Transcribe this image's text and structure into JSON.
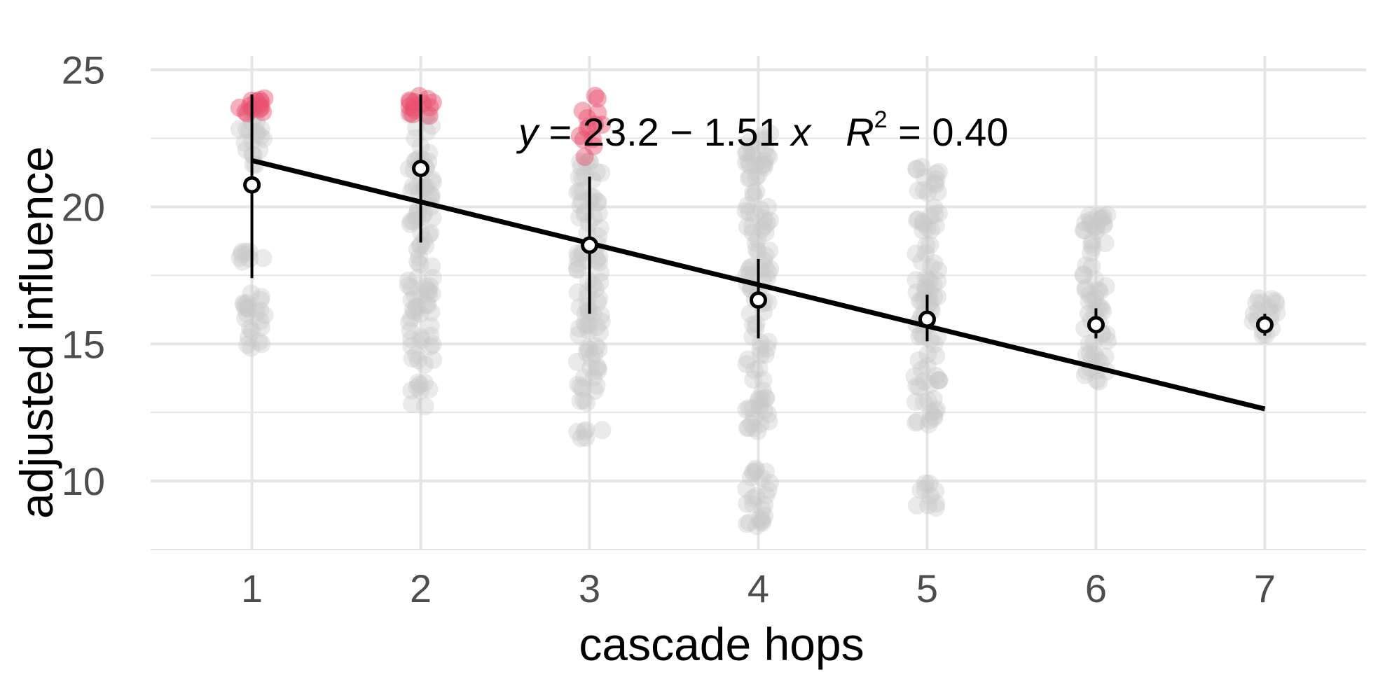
{
  "chart_data": {
    "type": "scatter",
    "title": "",
    "xlabel": "cascade hops",
    "ylabel": "adjusted influence",
    "xlim": [
      0.4,
      7.6
    ],
    "ylim": [
      7.5,
      25.5
    ],
    "x_ticks": [
      "1",
      "2",
      "3",
      "4",
      "5",
      "6",
      "7"
    ],
    "y_ticks": [
      "10",
      "15",
      "20",
      "25"
    ],
    "grid": true,
    "legend": "none",
    "annotation": {
      "y_symbol": "y",
      "equation_rest": " = 23.2 − 1.51 ",
      "x_symbol": "x",
      "r_symbol": "R",
      "r_exponent": "2",
      "r_rest": " = 0.40"
    },
    "fit_line": {
      "intercept": 23.2,
      "slope": -1.51,
      "x_range": [
        1,
        7
      ],
      "color": "#000000"
    },
    "means": [
      {
        "x": 1,
        "mean": 20.8,
        "low": 17.4,
        "high": 24.1
      },
      {
        "x": 2,
        "mean": 21.4,
        "low": 18.7,
        "high": 24.1
      },
      {
        "x": 3,
        "mean": 18.6,
        "low": 16.1,
        "high": 21.1
      },
      {
        "x": 4,
        "mean": 16.6,
        "low": 15.2,
        "high": 18.1
      },
      {
        "x": 5,
        "mean": 15.9,
        "low": 15.1,
        "high": 16.8
      },
      {
        "x": 6,
        "mean": 15.7,
        "low": 15.2,
        "high": 16.3
      },
      {
        "x": 7,
        "mean": 15.7,
        "low": 15.3,
        "high": 16.1
      }
    ],
    "point_bands": [
      {
        "x": 1,
        "ranges": [
          [
            14.6,
            16.9
          ],
          [
            17.8,
            18.6
          ],
          [
            21.5,
            23.5
          ]
        ],
        "highlight": [
          23.4,
          24.1
        ]
      },
      {
        "x": 2,
        "ranges": [
          [
            14.0,
            23.6
          ],
          [
            12.7,
            13.6
          ]
        ],
        "highlight": [
          23.3,
          24.1
        ]
      },
      {
        "x": 3,
        "ranges": [
          [
            12.8,
            22.0
          ],
          [
            11.5,
            11.9
          ]
        ],
        "highlight": [
          21.8,
          24.2
        ]
      },
      {
        "x": 4,
        "ranges": [
          [
            11.8,
            22.8
          ],
          [
            8.0,
            10.5
          ]
        ],
        "highlight": null
      },
      {
        "x": 5,
        "ranges": [
          [
            12.0,
            20.0
          ],
          [
            9.0,
            10.0
          ],
          [
            20.5,
            21.8
          ]
        ],
        "highlight": null
      },
      {
        "x": 6,
        "ranges": [
          [
            13.5,
            19.9
          ]
        ],
        "highlight": null
      },
      {
        "x": 7,
        "ranges": [
          [
            15.0,
            16.8
          ]
        ],
        "highlight": null
      }
    ],
    "colors": {
      "points": "#c8c8c8",
      "highlight": "#e8506e",
      "grid": "#e5e5e5",
      "mean_marker": "#000000"
    }
  }
}
